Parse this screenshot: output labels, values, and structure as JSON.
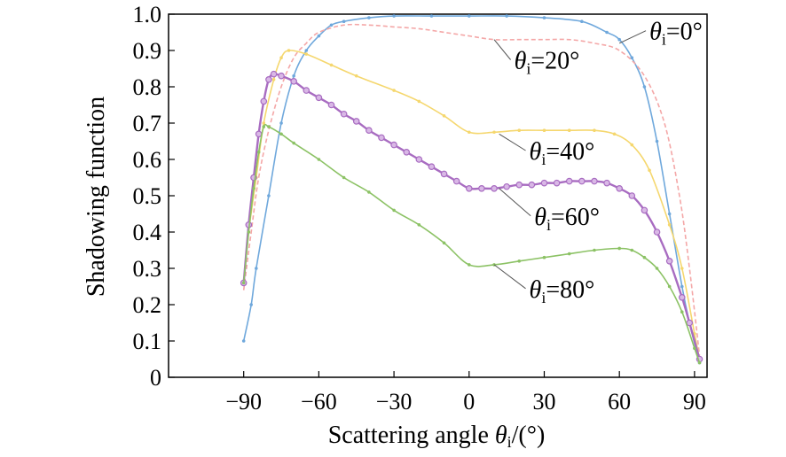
{
  "chart_data": {
    "type": "line",
    "xlabel": "Scattering angle θi/(°)",
    "xlabel_parts": {
      "pre": "Scattering angle ",
      "theta": "θ",
      "sub": "i",
      "post": "/(°)"
    },
    "ylabel": "Shadowing function",
    "xlim": [
      -120,
      95
    ],
    "ylim": [
      0,
      1.0
    ],
    "x_ticks": [
      -90,
      -60,
      -30,
      0,
      30,
      60,
      90
    ],
    "x_tick_labels": [
      "−90",
      "−60",
      "−30",
      "0",
      "30",
      "60",
      "90"
    ],
    "y_ticks": [
      0,
      0.1,
      0.2,
      0.3,
      0.4,
      0.5,
      0.6,
      0.7,
      0.8,
      0.9,
      1.0
    ],
    "y_tick_labels": [
      "0",
      "0.1",
      "0.2",
      "0.3",
      "0.4",
      "0.5",
      "0.6",
      "0.7",
      "0.8",
      "0.9",
      "1.0"
    ],
    "grid": false,
    "legend": "inline labels",
    "series": [
      {
        "label": {
          "theta": "θ",
          "sub": "i",
          "text": "=0°"
        },
        "color": "#6fa8dc",
        "marker": "dot",
        "points": [
          [
            -90,
            0.1
          ],
          [
            -87,
            0.2
          ],
          [
            -85,
            0.3
          ],
          [
            -80,
            0.5
          ],
          [
            -75,
            0.7
          ],
          [
            -70,
            0.83
          ],
          [
            -65,
            0.9
          ],
          [
            -60,
            0.94
          ],
          [
            -55,
            0.97
          ],
          [
            -50,
            0.98
          ],
          [
            -40,
            0.99
          ],
          [
            -30,
            0.995
          ],
          [
            -15,
            0.995
          ],
          [
            0,
            0.995
          ],
          [
            15,
            0.995
          ],
          [
            30,
            0.99
          ],
          [
            45,
            0.98
          ],
          [
            55,
            0.95
          ],
          [
            60,
            0.93
          ],
          [
            65,
            0.88
          ],
          [
            70,
            0.8
          ],
          [
            75,
            0.65
          ],
          [
            80,
            0.45
          ],
          [
            85,
            0.25
          ],
          [
            88,
            0.15
          ],
          [
            92,
            0.04
          ]
        ]
      },
      {
        "label": {
          "theta": "θ",
          "sub": "i",
          "text": "=20°"
        },
        "color": "#f4a7a7",
        "marker": "none",
        "points": [
          [
            -90,
            0.24
          ],
          [
            -87,
            0.4
          ],
          [
            -84,
            0.55
          ],
          [
            -80,
            0.68
          ],
          [
            -75,
            0.8
          ],
          [
            -70,
            0.88
          ],
          [
            -65,
            0.92
          ],
          [
            -60,
            0.95
          ],
          [
            -50,
            0.97
          ],
          [
            -40,
            0.97
          ],
          [
            -30,
            0.965
          ],
          [
            -20,
            0.96
          ],
          [
            -10,
            0.95
          ],
          [
            0,
            0.94
          ],
          [
            10,
            0.93
          ],
          [
            20,
            0.93
          ],
          [
            30,
            0.93
          ],
          [
            40,
            0.93
          ],
          [
            50,
            0.92
          ],
          [
            60,
            0.9
          ],
          [
            70,
            0.83
          ],
          [
            78,
            0.7
          ],
          [
            84,
            0.5
          ],
          [
            88,
            0.3
          ],
          [
            92,
            0.06
          ]
        ]
      },
      {
        "label": {
          "theta": "θ",
          "sub": "i",
          "text": "=40°"
        },
        "color": "#f5d76e",
        "marker": "dot",
        "points": [
          [
            -90,
            0.26
          ],
          [
            -88,
            0.4
          ],
          [
            -85,
            0.55
          ],
          [
            -82,
            0.7
          ],
          [
            -78,
            0.82
          ],
          [
            -75,
            0.88
          ],
          [
            -72,
            0.9
          ],
          [
            -65,
            0.89
          ],
          [
            -55,
            0.86
          ],
          [
            -45,
            0.83
          ],
          [
            -30,
            0.79
          ],
          [
            -20,
            0.76
          ],
          [
            -10,
            0.72
          ],
          [
            0,
            0.675
          ],
          [
            10,
            0.675
          ],
          [
            20,
            0.68
          ],
          [
            30,
            0.68
          ],
          [
            40,
            0.68
          ],
          [
            50,
            0.68
          ],
          [
            58,
            0.67
          ],
          [
            65,
            0.64
          ],
          [
            72,
            0.57
          ],
          [
            80,
            0.42
          ],
          [
            85,
            0.3
          ],
          [
            90,
            0.12
          ],
          [
            92,
            0.05
          ]
        ]
      },
      {
        "label": {
          "theta": "θ",
          "sub": "i",
          "text": "=60°"
        },
        "color": "#a86cc1",
        "marker": "circle",
        "points": [
          [
            -90,
            0.26
          ],
          [
            -88,
            0.42
          ],
          [
            -86,
            0.55
          ],
          [
            -84,
            0.67
          ],
          [
            -82,
            0.76
          ],
          [
            -80,
            0.82
          ],
          [
            -78,
            0.835
          ],
          [
            -75,
            0.83
          ],
          [
            -70,
            0.815
          ],
          [
            -65,
            0.79
          ],
          [
            -60,
            0.77
          ],
          [
            -55,
            0.75
          ],
          [
            -50,
            0.725
          ],
          [
            -45,
            0.705
          ],
          [
            -40,
            0.68
          ],
          [
            -35,
            0.66
          ],
          [
            -30,
            0.64
          ],
          [
            -25,
            0.62
          ],
          [
            -20,
            0.6
          ],
          [
            -15,
            0.58
          ],
          [
            -10,
            0.56
          ],
          [
            -5,
            0.54
          ],
          [
            0,
            0.52
          ],
          [
            5,
            0.52
          ],
          [
            10,
            0.52
          ],
          [
            15,
            0.525
          ],
          [
            20,
            0.53
          ],
          [
            25,
            0.53
          ],
          [
            30,
            0.535
          ],
          [
            35,
            0.535
          ],
          [
            40,
            0.54
          ],
          [
            45,
            0.54
          ],
          [
            50,
            0.54
          ],
          [
            55,
            0.535
          ],
          [
            60,
            0.52
          ],
          [
            65,
            0.5
          ],
          [
            70,
            0.46
          ],
          [
            75,
            0.4
          ],
          [
            80,
            0.32
          ],
          [
            85,
            0.22
          ],
          [
            88,
            0.15
          ],
          [
            92,
            0.05
          ]
        ]
      },
      {
        "label": {
          "theta": "θ",
          "sub": "i",
          "text": "=80°"
        },
        "color": "#8cc265",
        "marker": "dot",
        "points": [
          [
            -90,
            0.26
          ],
          [
            -88,
            0.4
          ],
          [
            -86,
            0.52
          ],
          [
            -84,
            0.62
          ],
          [
            -82,
            0.69
          ],
          [
            -80,
            0.69
          ],
          [
            -75,
            0.67
          ],
          [
            -70,
            0.645
          ],
          [
            -60,
            0.6
          ],
          [
            -50,
            0.55
          ],
          [
            -40,
            0.51
          ],
          [
            -30,
            0.46
          ],
          [
            -20,
            0.42
          ],
          [
            -10,
            0.37
          ],
          [
            0,
            0.31
          ],
          [
            10,
            0.31
          ],
          [
            20,
            0.32
          ],
          [
            30,
            0.33
          ],
          [
            40,
            0.34
          ],
          [
            50,
            0.35
          ],
          [
            60,
            0.355
          ],
          [
            65,
            0.35
          ],
          [
            70,
            0.33
          ],
          [
            75,
            0.3
          ],
          [
            80,
            0.25
          ],
          [
            85,
            0.18
          ],
          [
            90,
            0.08
          ],
          [
            92,
            0.04
          ]
        ]
      }
    ],
    "annotations": [
      {
        "series": 0,
        "anchor": [
          60,
          0.92
        ],
        "text_at": [
          72,
          0.93
        ]
      },
      {
        "series": 1,
        "anchor": [
          10,
          0.93
        ],
        "text_at": [
          18,
          0.85
        ]
      },
      {
        "series": 2,
        "anchor": [
          12,
          0.67
        ],
        "text_at": [
          24,
          0.6
        ]
      },
      {
        "series": 3,
        "anchor": [
          12,
          0.52
        ],
        "text_at": [
          26,
          0.42
        ]
      },
      {
        "series": 4,
        "anchor": [
          10,
          0.31
        ],
        "text_at": [
          24,
          0.22
        ]
      }
    ]
  }
}
